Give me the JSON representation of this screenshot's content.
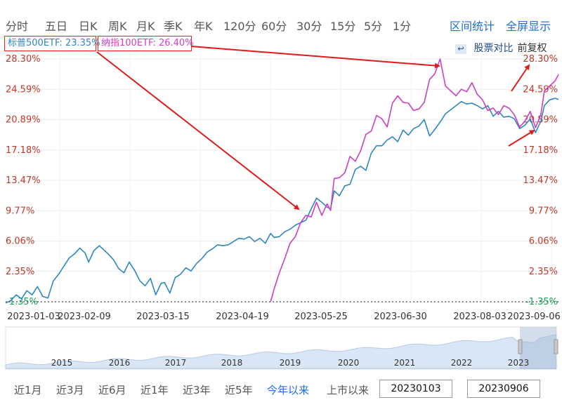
{
  "toolbar": {
    "periods": [
      "分时",
      "五日",
      "日K",
      "周K",
      "月K",
      "季K",
      "年K",
      "120分",
      "60分",
      "30分",
      "15分",
      "5分",
      "1分"
    ],
    "right_buttons": [
      "区间统计",
      "全屏显示"
    ]
  },
  "legend": {
    "sp500": "标普500ETF: 23.35%",
    "ndx": "纳指100ETF: 26.40%"
  },
  "compare": {
    "stock_compare": "股票对比",
    "adjust": "前复权"
  },
  "colors": {
    "sp500": "#2e86c1",
    "ndx": "#cc3fc2",
    "axis_red": "#c0392b",
    "axis_green": "#1a9e55",
    "arrow": "#e01b1b"
  },
  "chart_data": {
    "type": "line",
    "y_ticks": [
      "28.30%",
      "24.59%",
      "20.89%",
      "17.18%",
      "13.47%",
      "9.77%",
      "6.06%",
      "2.35%",
      "-1.35%"
    ],
    "x_ticks": [
      "2023-01-03",
      "2023-02-09",
      "2023-03-15",
      "2023-04-19",
      "2023-05-25",
      "2023-06-30",
      "2023-08-03",
      "2023-09-06"
    ],
    "ylim": [
      -1.35,
      28.3
    ],
    "series": [
      {
        "name": "标普500ETF",
        "values": [
          [
            0,
            -1.5
          ],
          [
            3,
            -1.2
          ],
          [
            6,
            -0.5
          ],
          [
            9,
            -1.0
          ],
          [
            12,
            0.0
          ],
          [
            15,
            -0.5
          ],
          [
            18,
            0.5
          ],
          [
            21,
            -0.7
          ],
          [
            24,
            -0.9
          ],
          [
            27,
            1.2
          ],
          [
            30,
            2.0
          ],
          [
            33,
            3.0
          ],
          [
            36,
            4.0
          ],
          [
            39,
            4.5
          ],
          [
            42,
            5.2
          ],
          [
            45,
            4.6
          ],
          [
            47,
            3.5
          ],
          [
            50,
            4.9
          ],
          [
            53,
            5.5
          ],
          [
            56,
            4.9
          ],
          [
            58,
            4.5
          ],
          [
            61,
            3.8
          ],
          [
            64,
            2.7
          ],
          [
            67,
            2.2
          ],
          [
            70,
            3.5
          ],
          [
            73,
            2.5
          ],
          [
            76,
            1.2
          ],
          [
            79,
            0.6
          ],
          [
            82,
            1.5
          ],
          [
            85,
            -0.5
          ],
          [
            88,
            0.9
          ],
          [
            90,
            1.0
          ],
          [
            93,
            -0.3
          ],
          [
            96,
            1.6
          ],
          [
            99,
            2.0
          ],
          [
            102,
            2.8
          ],
          [
            105,
            2.4
          ],
          [
            108,
            3.3
          ],
          [
            111,
            3.9
          ],
          [
            114,
            4.7
          ],
          [
            117,
            5.1
          ],
          [
            120,
            5.6
          ],
          [
            123,
            5.5
          ],
          [
            126,
            5.6
          ],
          [
            129,
            6.0
          ],
          [
            132,
            6.4
          ],
          [
            135,
            6.3
          ],
          [
            138,
            6.6
          ],
          [
            141,
            6.0
          ],
          [
            144,
            6.4
          ],
          [
            147,
            5.8
          ],
          [
            150,
            7.0
          ],
          [
            152,
            6.5
          ],
          [
            155,
            6.6
          ],
          [
            158,
            7.2
          ],
          [
            161,
            7.5
          ],
          [
            164,
            8.0
          ],
          [
            167,
            8.3
          ],
          [
            170,
            8.6
          ],
          [
            173,
            10.0
          ],
          [
            176,
            11.3
          ],
          [
            179,
            10.8
          ],
          [
            182,
            10.2
          ],
          [
            184,
            10.0
          ],
          [
            186,
            12.2
          ],
          [
            189,
            11.6
          ],
          [
            192,
            12.8
          ],
          [
            195,
            13.0
          ],
          [
            198,
            14.8
          ],
          [
            201,
            15.2
          ],
          [
            204,
            14.7
          ],
          [
            207,
            16.8
          ],
          [
            210,
            17.7
          ],
          [
            213,
            17.7
          ],
          [
            216,
            18.4
          ],
          [
            219,
            18.8
          ],
          [
            222,
            18.2
          ],
          [
            225,
            19.6
          ],
          [
            228,
            19.0
          ],
          [
            231,
            19.8
          ],
          [
            234,
            20.1
          ],
          [
            237,
            20.9
          ],
          [
            240,
            18.9
          ],
          [
            243,
            19.7
          ],
          [
            246,
            20.6
          ],
          [
            249,
            21.6
          ],
          [
            252,
            22.1
          ],
          [
            255,
            22.6
          ],
          [
            258,
            23.1
          ],
          [
            261,
            22.8
          ],
          [
            264,
            22.9
          ],
          [
            267,
            22.6
          ],
          [
            270,
            22.2
          ],
          [
            273,
            22.6
          ],
          [
            276,
            21.3
          ],
          [
            279,
            21.9
          ],
          [
            282,
            21.2
          ],
          [
            285,
            21.3
          ],
          [
            288,
            21.0
          ],
          [
            291,
            19.8
          ],
          [
            294,
            20.2
          ],
          [
            297,
            21.0
          ],
          [
            300,
            19.3
          ],
          [
            303,
            20.7
          ],
          [
            305,
            22.6
          ],
          [
            308,
            23.3
          ],
          [
            311,
            23.5
          ],
          [
            313,
            23.35
          ]
        ]
      },
      {
        "name": "纳指100ETF",
        "values": [
          [
            150,
            -1.35
          ],
          [
            152,
            0.2
          ],
          [
            155,
            2.2
          ],
          [
            158,
            3.9
          ],
          [
            161,
            5.8
          ],
          [
            164,
            6.6
          ],
          [
            167,
            8.3
          ],
          [
            170,
            9.2
          ],
          [
            173,
            9.0
          ],
          [
            176,
            10.8
          ],
          [
            179,
            9.2
          ],
          [
            182,
            10.6
          ],
          [
            184,
            9.8
          ],
          [
            186,
            13.7
          ],
          [
            189,
            13.8
          ],
          [
            192,
            14.4
          ],
          [
            195,
            16.4
          ],
          [
            198,
            15.8
          ],
          [
            201,
            17.1
          ],
          [
            204,
            19.1
          ],
          [
            207,
            19.5
          ],
          [
            210,
            21.4
          ],
          [
            213,
            21.0
          ],
          [
            216,
            20.0
          ],
          [
            219,
            22.9
          ],
          [
            222,
            23.8
          ],
          [
            225,
            23.0
          ],
          [
            228,
            22.9
          ],
          [
            231,
            22.0
          ],
          [
            234,
            22.2
          ],
          [
            237,
            23.0
          ],
          [
            240,
            25.8
          ],
          [
            243,
            26.5
          ],
          [
            246,
            28.3
          ],
          [
            249,
            25.0
          ],
          [
            252,
            24.4
          ],
          [
            255,
            23.8
          ],
          [
            258,
            24.6
          ],
          [
            261,
            24.3
          ],
          [
            264,
            25.4
          ],
          [
            267,
            24.0
          ],
          [
            270,
            23.3
          ],
          [
            273,
            22.0
          ],
          [
            276,
            22.3
          ],
          [
            279,
            21.5
          ],
          [
            282,
            22.6
          ],
          [
            285,
            22.3
          ],
          [
            288,
            21.5
          ],
          [
            291,
            20.0
          ],
          [
            294,
            20.7
          ],
          [
            297,
            21.9
          ],
          [
            300,
            19.9
          ],
          [
            303,
            21.5
          ],
          [
            305,
            24.4
          ],
          [
            308,
            25.0
          ],
          [
            311,
            25.6
          ],
          [
            313,
            26.4
          ]
        ]
      }
    ]
  },
  "mini_chart": {
    "years": [
      "2015",
      "2016",
      "2017",
      "2018",
      "2019",
      "2020",
      "2021",
      "2022",
      "2023"
    ]
  },
  "bottom": {
    "ranges": [
      "近1月",
      "近3月",
      "近6月",
      "近1年",
      "近3年",
      "近5年",
      "今年以来",
      "上市以来"
    ],
    "active_range": "今年以来",
    "start_date": "20230103",
    "end_date": "20230906"
  }
}
